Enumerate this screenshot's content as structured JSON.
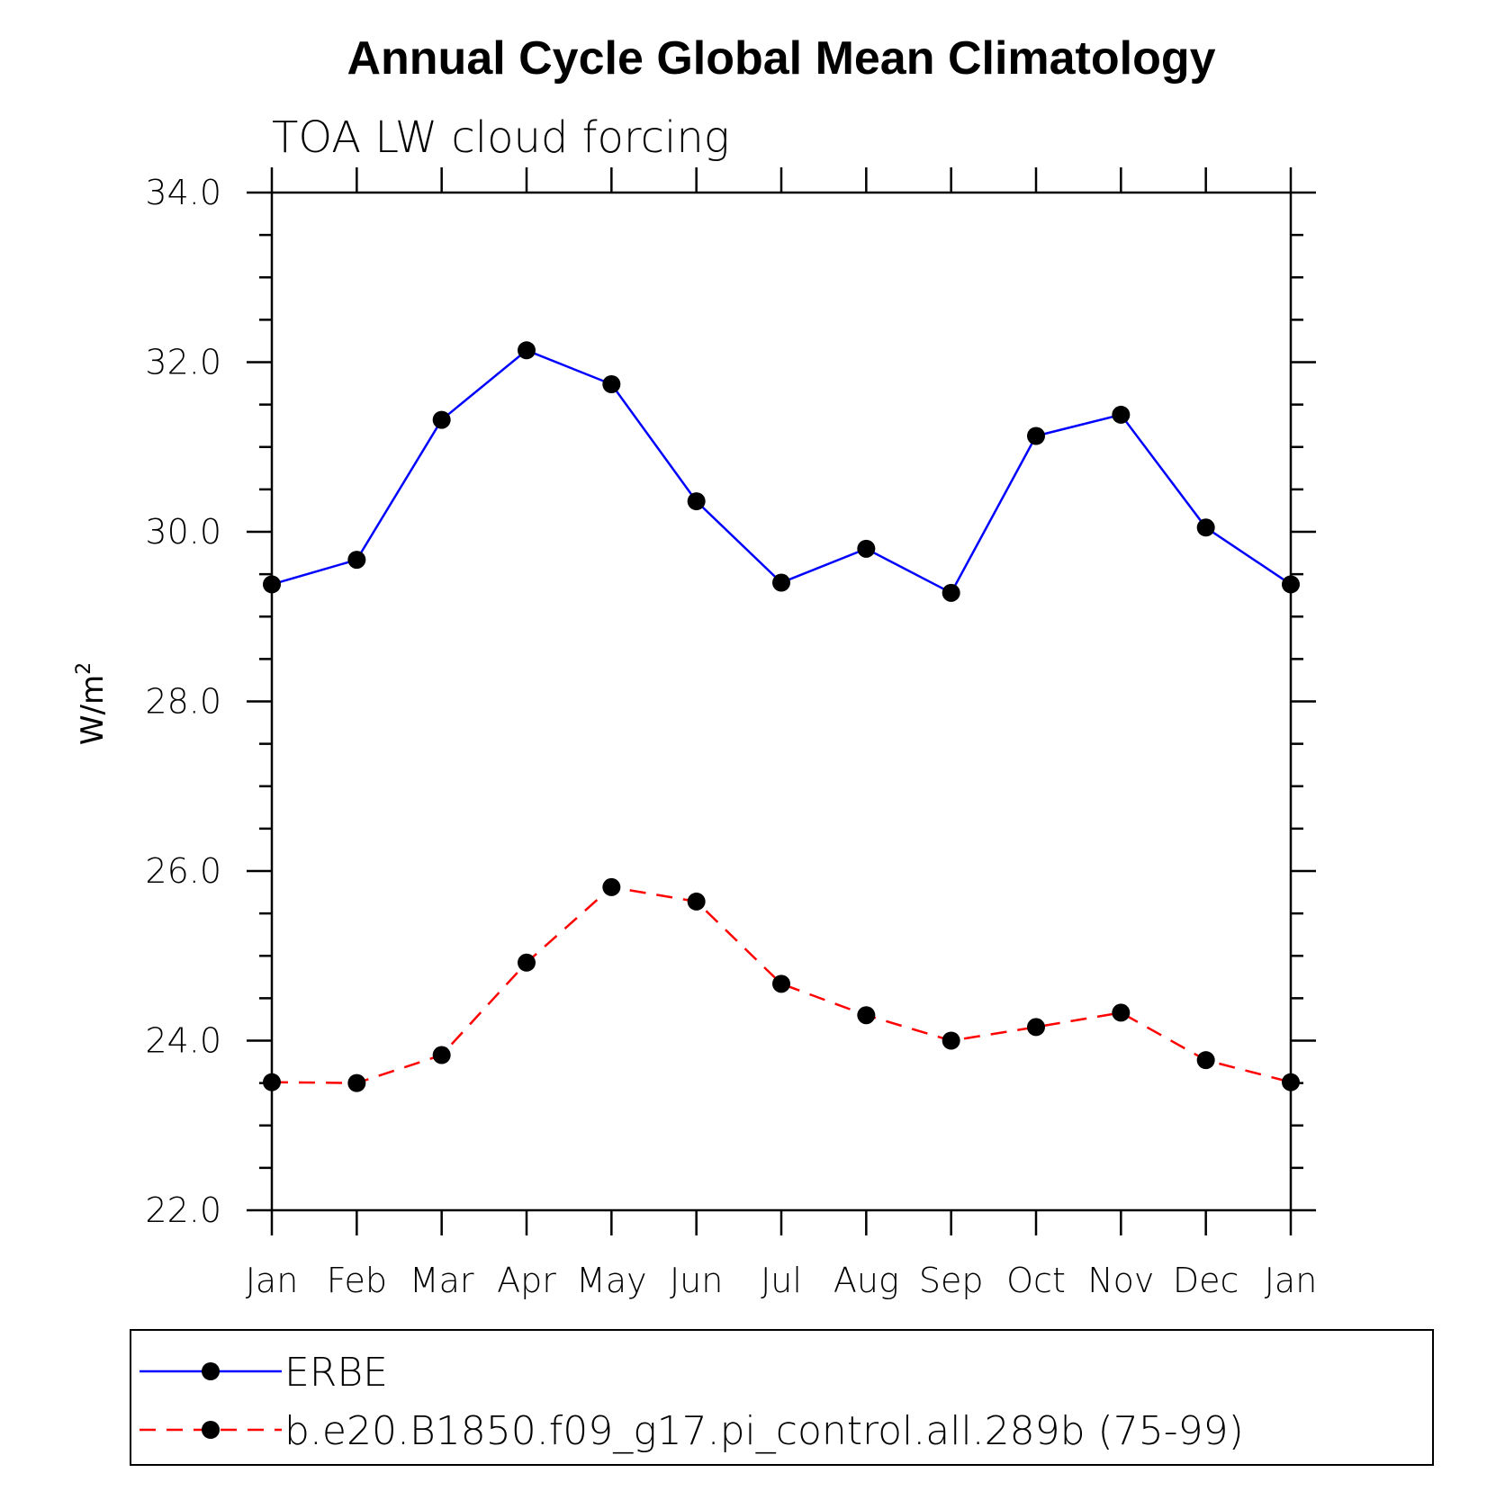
{
  "chart_data": {
    "type": "line",
    "title": "Annual Cycle Global Mean Climatology",
    "subtitle": "TOA LW cloud forcing",
    "ylabel": "W/m",
    "ylabel_sup": "2",
    "xlabel": "",
    "categories": [
      "Jan",
      "Feb",
      "Mar",
      "Apr",
      "May",
      "Jun",
      "Jul",
      "Aug",
      "Sep",
      "Oct",
      "Nov",
      "Dec",
      "Jan"
    ],
    "ylim": [
      22.0,
      34.0
    ],
    "yticks": [
      "22.0",
      "24.0",
      "26.0",
      "28.0",
      "30.0",
      "32.0",
      "34.0"
    ],
    "grid": false,
    "legend_position": "bottom",
    "series": [
      {
        "name": "ERBE",
        "color": "#0000ff",
        "dash": "solid",
        "values": [
          29.38,
          29.67,
          31.32,
          32.14,
          31.74,
          30.36,
          29.4,
          29.8,
          29.28,
          31.13,
          31.38,
          30.05,
          29.38
        ]
      },
      {
        "name": "b.e20.B1850.f09_g17.pi_control.all.289b (75-99)",
        "color": "#ff0000",
        "dash": "dashed",
        "values": [
          23.51,
          23.5,
          23.83,
          24.92,
          25.81,
          25.64,
          24.67,
          24.3,
          24.0,
          24.16,
          24.33,
          23.77,
          23.51
        ]
      }
    ]
  }
}
